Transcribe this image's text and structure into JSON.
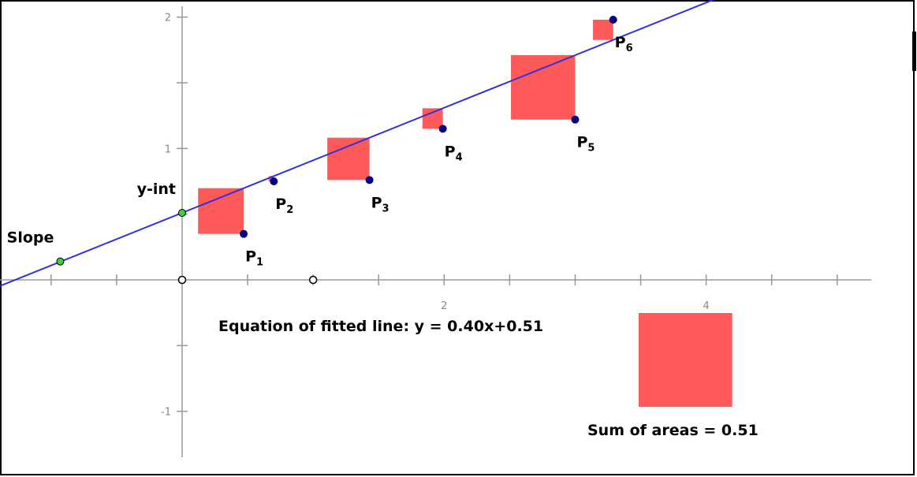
{
  "axes": {
    "xlim": [
      -1.39,
      5.26
    ],
    "ylim": [
      -1.35,
      2.13
    ],
    "xticks": [
      -1,
      -0.5,
      0.5,
      1,
      1.5,
      2,
      2.5,
      3,
      3.5,
      4,
      4.5,
      5
    ],
    "xtick_labels": [
      2,
      4
    ],
    "yticks": [
      -1,
      -0.5,
      0.5,
      1,
      1.5,
      2
    ],
    "ytick_labels": [
      2,
      1,
      -1
    ]
  },
  "points": [
    {
      "letter": "P",
      "sub": "1",
      "x": 0.47,
      "y": 0.35
    },
    {
      "letter": "P",
      "sub": "2",
      "x": 0.7,
      "y": 0.75
    },
    {
      "letter": "P",
      "sub": "3",
      "x": 1.43,
      "y": 0.76
    },
    {
      "letter": "P",
      "sub": "4",
      "x": 1.99,
      "y": 1.15
    },
    {
      "letter": "P",
      "sub": "5",
      "x": 3.0,
      "y": 1.22
    },
    {
      "letter": "P",
      "sub": "6",
      "x": 3.29,
      "y": 1.98
    }
  ],
  "fitted_line": {
    "slope": 0.4,
    "intercept": 0.51,
    "label": "Equation of fitted line: y = 0.40x+0.51"
  },
  "handles": [
    {
      "label": "Slope",
      "x": -0.93,
      "y": 0.14
    },
    {
      "label": "y-int",
      "x": 0,
      "y": 0.51
    }
  ],
  "open_points": [
    {
      "x": 0,
      "y": 0
    },
    {
      "x": 1,
      "y": 0
    }
  ],
  "sum_of_areas": {
    "label": "Sum of areas = 0.51",
    "value": 0.51
  }
}
